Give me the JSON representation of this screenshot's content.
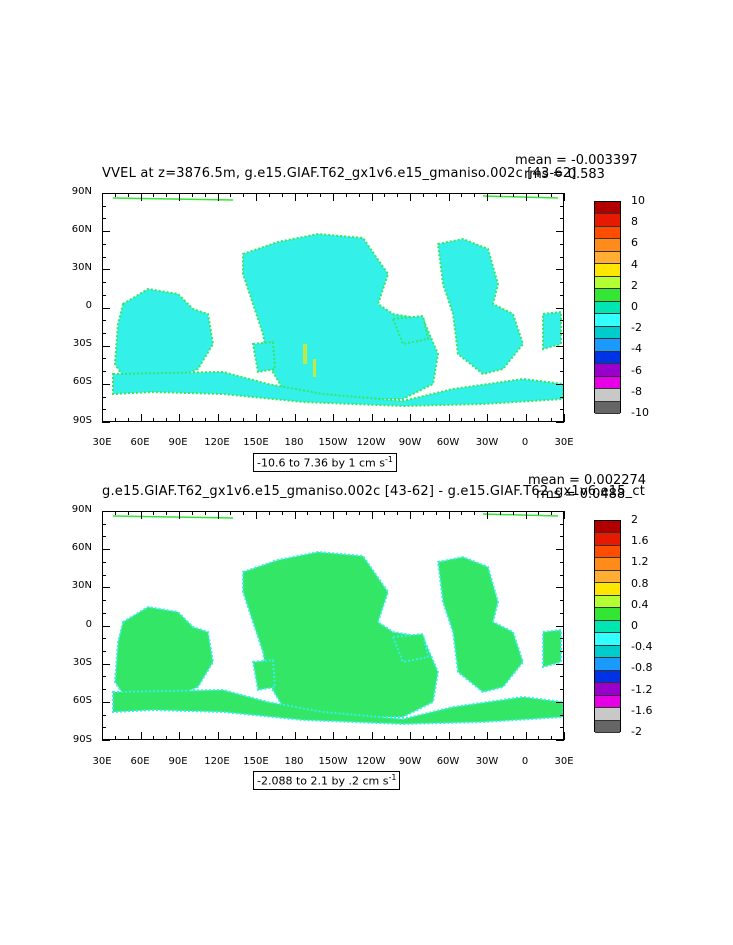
{
  "panels": [
    {
      "title": "VVEL at z=3876.5m, g.e15.GIAF.T62_gx1v6.e15_gmaniso.002c [43-62]",
      "mean_label": "mean = -0.003397",
      "rms_label": "rms = 0.583",
      "range_text": "-10.6 to 7.36 by 1 cm s",
      "range_sup": "-1",
      "colorbar_labels": [
        "10",
        "8",
        "6",
        "4",
        "2",
        "0",
        "-2",
        "-4",
        "-6",
        "-8",
        "-10"
      ]
    },
    {
      "title": "g.e15.GIAF.T62_gx1v6.e15_gmaniso.002c [43-62] - g.e15.GIAF.T62_gx1v6.e15_ct",
      "mean_label": "mean = 0.002274",
      "rms_label": "rms = 0.0488",
      "range_text": "-2.088 to 2.1 by .2 cm s",
      "range_sup": "-1",
      "colorbar_labels": [
        "2",
        "1.6",
        "1.2",
        "0.8",
        "0.4",
        "0",
        "-0.4",
        "-0.8",
        "-1.2",
        "-1.6",
        "-2"
      ]
    }
  ],
  "axes": {
    "lat_labels": [
      "90N",
      "60N",
      "30N",
      "0",
      "30S",
      "60S",
      "90S"
    ],
    "lon_labels": [
      "30E",
      "60E",
      "90E",
      "120E",
      "150E",
      "180",
      "150W",
      "120W",
      "90W",
      "60W",
      "30W",
      "0",
      "30E"
    ]
  },
  "colors": {
    "scale": [
      "#b20000",
      "#e61a00",
      "#ff4d00",
      "#ff8c1a",
      "#ffad33",
      "#ffe600",
      "#b3ff33",
      "#33e633",
      "#00e6b3",
      "#33ffff",
      "#00cccc",
      "#1a99ff",
      "#0033e6",
      "#9900cc",
      "#e600e6",
      "#c8c8c8",
      "#666666"
    ],
    "ocean_main": "#33f0e8",
    "ocean_green": "#33e666"
  }
}
